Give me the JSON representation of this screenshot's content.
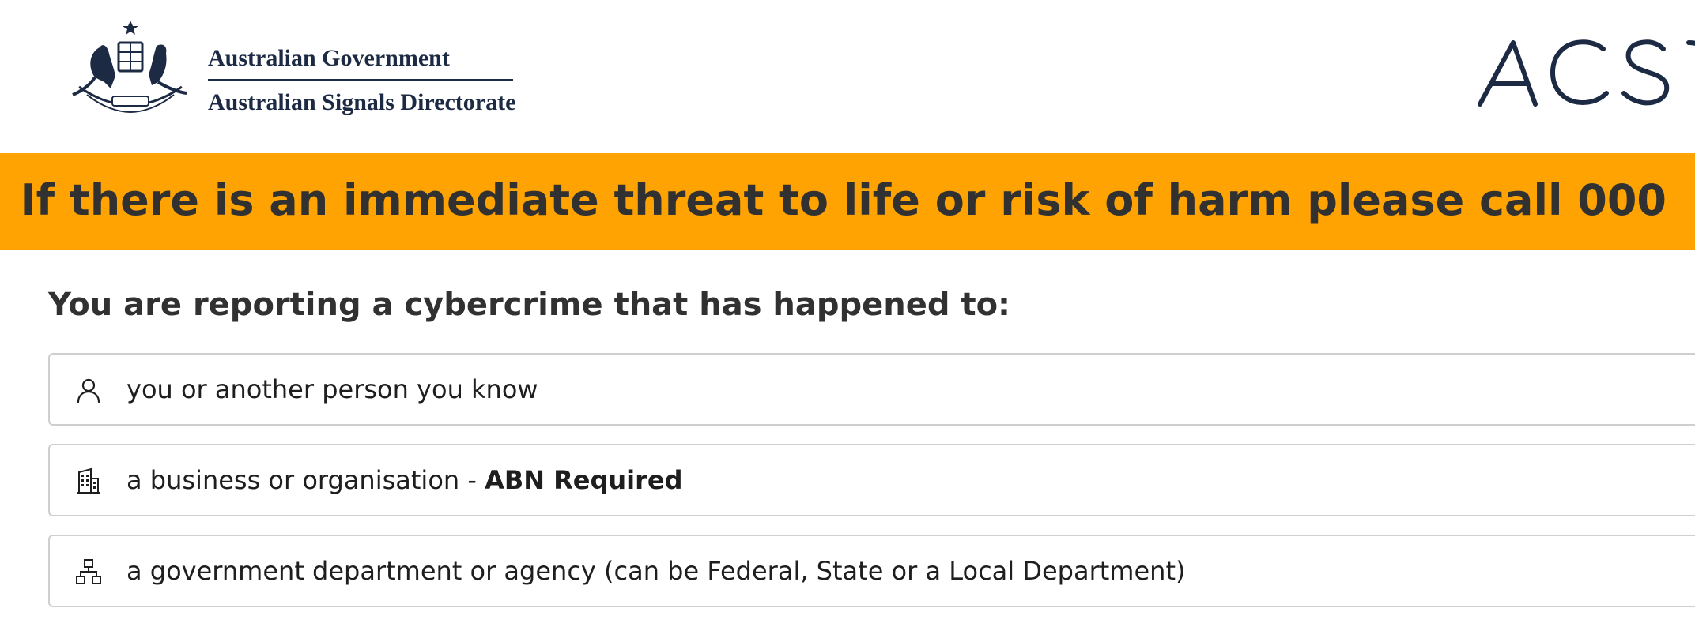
{
  "header": {
    "government_line": "Australian Government",
    "agency_line": "Australian Signals Directorate",
    "crest_icon": "australian-coat-of-arms-icon",
    "logo_icon": "acsc-logo-icon"
  },
  "banner": {
    "text": "If there is an immediate threat to life or risk of harm please call 000",
    "color": "#ffa302"
  },
  "main": {
    "question": "You are reporting a cybercrime that has happened to:",
    "options": [
      {
        "icon": "person-icon",
        "label": "you or another person you know",
        "suffix_separator": "",
        "suffix": ""
      },
      {
        "icon": "building-icon",
        "label": "a business or organisation",
        "suffix_separator": " - ",
        "suffix": "ABN Required"
      },
      {
        "icon": "org-chart-icon",
        "label": "a government department or agency (can be Federal, State or a Local Department)",
        "suffix_separator": "",
        "suffix": ""
      }
    ]
  }
}
